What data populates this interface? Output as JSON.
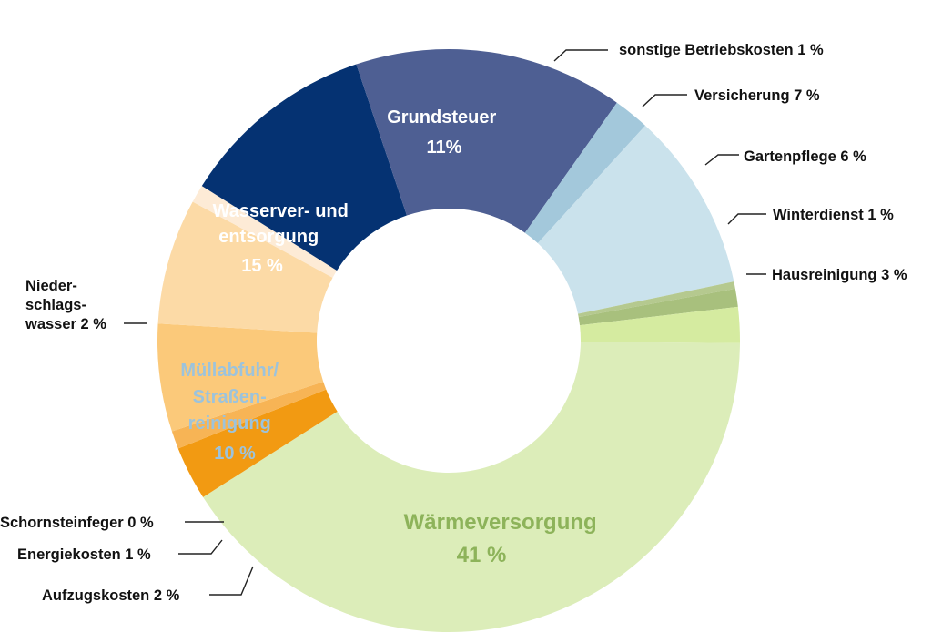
{
  "chart_data": {
    "type": "pie",
    "variant": "donut",
    "title": "",
    "unit": "%",
    "slices": [
      {
        "label": "Wärmeversorgung",
        "value": 41,
        "display": "41 %",
        "color": "#dcedb9"
      },
      {
        "label": "Hausreinigung",
        "value": 3,
        "display": "3 %",
        "color": "#f29a12"
      },
      {
        "label": "Winterdienst",
        "value": 1,
        "display": "1 %",
        "color": "#f7b455"
      },
      {
        "label": "Gartenpflege",
        "value": 6,
        "display": "6 %",
        "color": "#fbc97a"
      },
      {
        "label": "Versicherung",
        "value": 7,
        "display": "7 %",
        "color": "#fcdaa6"
      },
      {
        "label": "sonstige Betriebskosten",
        "value": 1,
        "display": "1 %",
        "color": "#fdebd6"
      },
      {
        "label": "Grundsteuer",
        "value": 11,
        "display": "11%",
        "color": "#053272"
      },
      {
        "label": "Wasserver- und entsorgung",
        "value": 15,
        "display": "15 %",
        "color": "#4e5f93"
      },
      {
        "label": "Niederschlagswasser",
        "value": 2,
        "display": "2 %",
        "color": "#a3c8db"
      },
      {
        "label": "Müllabfuhr/Straßenreinigung",
        "value": 10,
        "display": "10 %",
        "color": "#cae2ec"
      },
      {
        "label": "Schornsteinfeger",
        "value": 0,
        "display": "0 %",
        "color": "#b5c98f"
      },
      {
        "label": "Energiekosten",
        "value": 1,
        "display": "1 %",
        "color": "#a8c07d"
      },
      {
        "label": "Aufzugskosten",
        "value": 2,
        "display": "2 %",
        "color": "#d5eba0"
      }
    ]
  },
  "labels": {
    "grundsteuer": [
      "Grundsteuer",
      "11%"
    ],
    "wasser": [
      "Wasserver- und",
      "entsorgung",
      "15 %"
    ],
    "muell": [
      "Müllabfuhr/",
      "Straßen-",
      "reinigung",
      "10 %"
    ],
    "waerme": [
      "Wärmeversorgung",
      "41 %"
    ],
    "sonstige": "sonstige Betriebskosten 1 %",
    "versicherung": "Versicherung 7 %",
    "gartenpflege": "Gartenpflege 6 %",
    "winterdienst": "Winterdienst 1 %",
    "hausreinigung": "Hausreinigung 3 %",
    "niederschlag": [
      "Nieder-",
      "schlags-",
      "wasser 2 %"
    ],
    "schornstein": "Schornsteinfeger 0 %",
    "energie": "Energiekosten 1 %",
    "aufzug": "Aufzugskosten 2 %"
  }
}
